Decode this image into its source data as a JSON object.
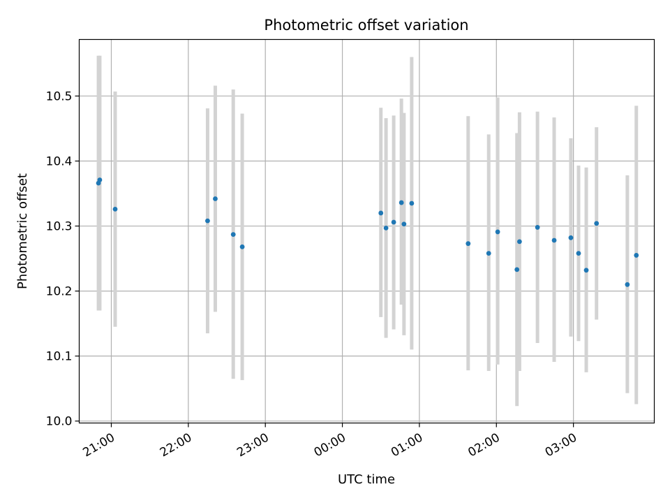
{
  "chart_data": {
    "type": "scatter",
    "title": "Photometric offset variation",
    "xlabel": "UTC time",
    "ylabel": "Photometric offset",
    "x_unit": "UTC, starting the evening before midnight",
    "xlim": [
      "20:35",
      "04:03"
    ],
    "ylim": [
      9.997,
      10.587
    ],
    "grid": true,
    "x_tick_labels": [
      "21:00",
      "22:00",
      "23:00",
      "00:00",
      "01:00",
      "02:00",
      "03:00"
    ],
    "y_tick_labels": [
      "10.0",
      "10.1",
      "10.2",
      "10.3",
      "10.4",
      "10.5"
    ],
    "y_ticks": [
      10.0,
      10.1,
      10.2,
      10.3,
      10.4,
      10.5
    ],
    "colors": {
      "point": "#1f77b4",
      "errorbar": "#d3d3d3",
      "grid": "#b0b0b0"
    },
    "series": [
      {
        "x": [
          "20:50",
          "20:51",
          "21:03",
          "22:15",
          "22:21",
          "22:35",
          "22:42",
          "00:30",
          "00:34",
          "00:40",
          "00:46",
          "00:48",
          "00:54",
          "01:38",
          "01:54",
          "02:01",
          "02:16",
          "02:18",
          "02:32",
          "02:45",
          "02:58",
          "03:04",
          "03:10",
          "03:18",
          "03:42",
          "03:49"
        ],
        "y": [
          10.366,
          10.371,
          10.326,
          10.308,
          10.342,
          10.287,
          10.268,
          10.32,
          10.297,
          10.306,
          10.336,
          10.303,
          10.335,
          10.273,
          10.258,
          10.291,
          10.233,
          10.276,
          10.298,
          10.278,
          10.282,
          10.258,
          10.232,
          10.304,
          10.21,
          10.255
        ],
        "yerr_low": [
          10.17,
          10.17,
          10.145,
          10.135,
          10.168,
          10.065,
          10.063,
          10.16,
          10.128,
          10.141,
          10.179,
          10.132,
          10.11,
          10.078,
          10.077,
          10.087,
          10.023,
          10.077,
          10.12,
          10.091,
          10.13,
          10.123,
          10.075,
          10.156,
          10.043,
          10.026
        ],
        "yerr_high": [
          10.562,
          10.562,
          10.507,
          10.481,
          10.516,
          10.51,
          10.473,
          10.482,
          10.466,
          10.47,
          10.496,
          10.474,
          10.56,
          10.469,
          10.441,
          10.498,
          10.443,
          10.475,
          10.476,
          10.467,
          10.435,
          10.393,
          10.39,
          10.452,
          10.378,
          10.485
        ]
      }
    ]
  }
}
